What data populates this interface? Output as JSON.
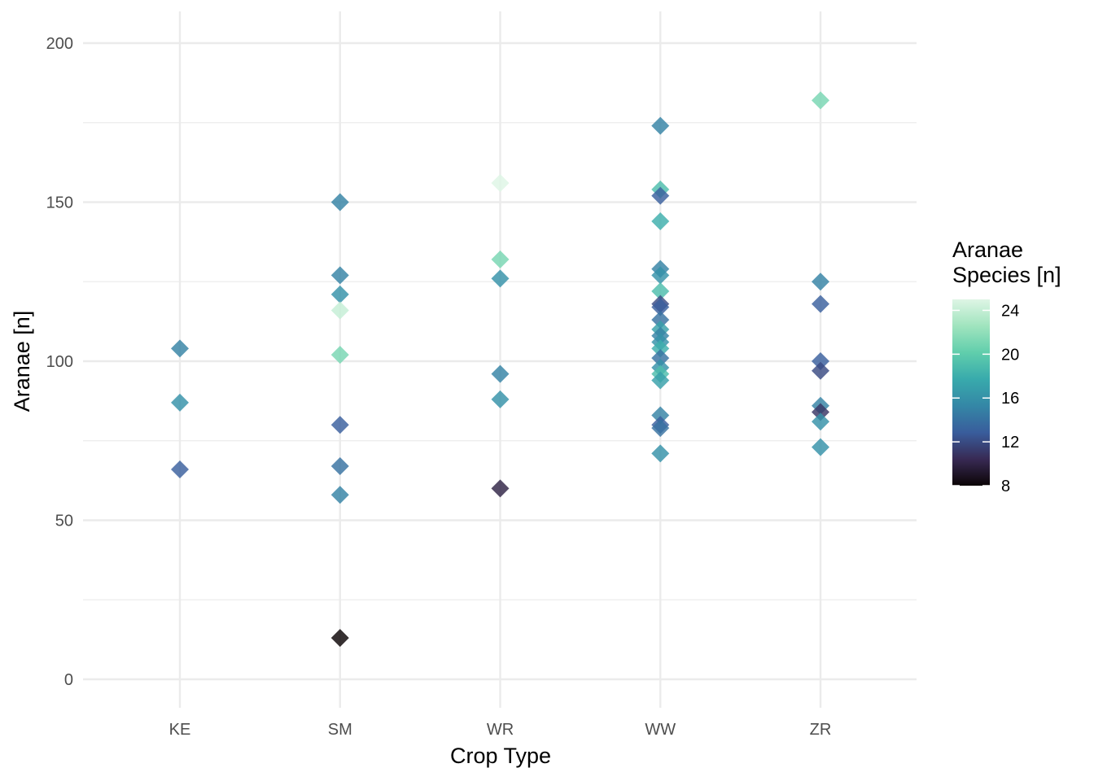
{
  "chart_data": {
    "type": "scatter",
    "title": "",
    "xlabel": "Crop Type",
    "ylabel": "Aranae [n]",
    "categories": [
      "KE",
      "SM",
      "WR",
      "WW",
      "ZR"
    ],
    "ylim": [
      -8,
      210
    ],
    "yticks": [
      0,
      50,
      100,
      150,
      200
    ],
    "grid": true,
    "marker": "diamond",
    "colorbar": {
      "title_lines": [
        "Aranae",
        "Species [n]"
      ],
      "range": [
        8,
        25
      ],
      "ticks": [
        8,
        12,
        16,
        20,
        24
      ],
      "colors": [
        "#0b0405",
        "#382a54",
        "#395d9c",
        "#3487a6",
        "#38aaac",
        "#60ceac",
        "#a0e4be",
        "#def5e5"
      ],
      "placement": "right"
    },
    "points": [
      {
        "x": "KE",
        "y": 104,
        "species": 15
      },
      {
        "x": "KE",
        "y": 87,
        "species": 16
      },
      {
        "x": "KE",
        "y": 66,
        "species": 13
      },
      {
        "x": "SM",
        "y": 150,
        "species": 15
      },
      {
        "x": "SM",
        "y": 127,
        "species": 15
      },
      {
        "x": "SM",
        "y": 121,
        "species": 16
      },
      {
        "x": "SM",
        "y": 116,
        "species": 24
      },
      {
        "x": "SM",
        "y": 102,
        "species": 21
      },
      {
        "x": "SM",
        "y": 80,
        "species": 13
      },
      {
        "x": "SM",
        "y": 67,
        "species": 14
      },
      {
        "x": "SM",
        "y": 58,
        "species": 15
      },
      {
        "x": "SM",
        "y": 13,
        "species": 8
      },
      {
        "x": "WR",
        "y": 156,
        "species": 25
      },
      {
        "x": "WR",
        "y": 132,
        "species": 21
      },
      {
        "x": "WR",
        "y": 126,
        "species": 16
      },
      {
        "x": "WR",
        "y": 96,
        "species": 15
      },
      {
        "x": "WR",
        "y": 88,
        "species": 16
      },
      {
        "x": "WR",
        "y": 60,
        "species": 10
      },
      {
        "x": "WW",
        "y": 174,
        "species": 15
      },
      {
        "x": "WW",
        "y": 154,
        "species": 19
      },
      {
        "x": "WW",
        "y": 152,
        "species": 13
      },
      {
        "x": "WW",
        "y": 144,
        "species": 18
      },
      {
        "x": "WW",
        "y": 129,
        "species": 15
      },
      {
        "x": "WW",
        "y": 127,
        "species": 16
      },
      {
        "x": "WW",
        "y": 122,
        "species": 19
      },
      {
        "x": "WW",
        "y": 118,
        "species": 12
      },
      {
        "x": "WW",
        "y": 117,
        "species": 13
      },
      {
        "x": "WW",
        "y": 113,
        "species": 14
      },
      {
        "x": "WW",
        "y": 110,
        "species": 17
      },
      {
        "x": "WW",
        "y": 108,
        "species": 15
      },
      {
        "x": "WW",
        "y": 106,
        "species": 16
      },
      {
        "x": "WW",
        "y": 104,
        "species": 18
      },
      {
        "x": "WW",
        "y": 101,
        "species": 14
      },
      {
        "x": "WW",
        "y": 98,
        "species": 16
      },
      {
        "x": "WW",
        "y": 96,
        "species": 19
      },
      {
        "x": "WW",
        "y": 94,
        "species": 17
      },
      {
        "x": "WW",
        "y": 83,
        "species": 15
      },
      {
        "x": "WW",
        "y": 80,
        "species": 13
      },
      {
        "x": "WW",
        "y": 79,
        "species": 14
      },
      {
        "x": "WW",
        "y": 71,
        "species": 16
      },
      {
        "x": "ZR",
        "y": 182,
        "species": 21
      },
      {
        "x": "ZR",
        "y": 125,
        "species": 15
      },
      {
        "x": "ZR",
        "y": 118,
        "species": 13
      },
      {
        "x": "ZR",
        "y": 100,
        "species": 13
      },
      {
        "x": "ZR",
        "y": 97,
        "species": 12
      },
      {
        "x": "ZR",
        "y": 86,
        "species": 15
      },
      {
        "x": "ZR",
        "y": 84,
        "species": 11
      },
      {
        "x": "ZR",
        "y": 81,
        "species": 16
      },
      {
        "x": "ZR",
        "y": 73,
        "species": 16
      }
    ]
  }
}
